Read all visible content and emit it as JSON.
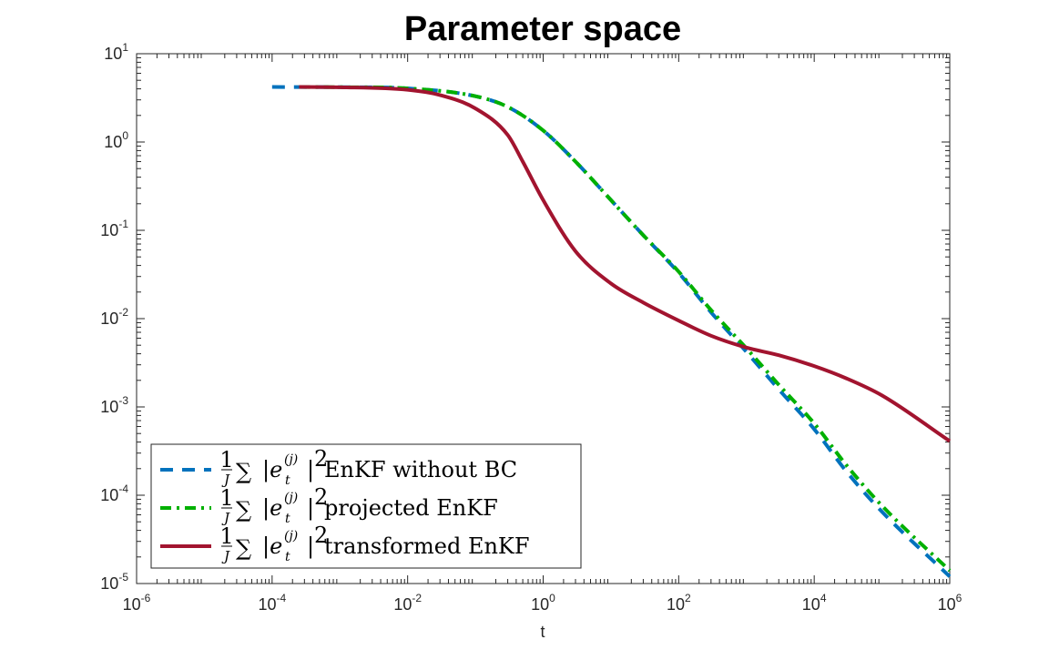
{
  "chart_data": {
    "type": "line",
    "title": "Parameter space",
    "xlabel": "t",
    "ylabel": "",
    "xscale": "log",
    "yscale": "log",
    "xlim": [
      1e-06,
      1000000.0
    ],
    "ylim": [
      1e-05,
      10
    ],
    "x_ticks": [
      {
        "base": "10",
        "exp": "-6",
        "value": 1e-06
      },
      {
        "base": "10",
        "exp": "-4",
        "value": 0.0001
      },
      {
        "base": "10",
        "exp": "-2",
        "value": 0.01
      },
      {
        "base": "10",
        "exp": "0",
        "value": 1
      },
      {
        "base": "10",
        "exp": "2",
        "value": 100
      },
      {
        "base": "10",
        "exp": "4",
        "value": 10000
      },
      {
        "base": "10",
        "exp": "6",
        "value": 1000000
      }
    ],
    "y_ticks": [
      {
        "base": "10",
        "exp": "-5",
        "value": 1e-05
      },
      {
        "base": "10",
        "exp": "-4",
        "value": 0.0001
      },
      {
        "base": "10",
        "exp": "-3",
        "value": 0.001
      },
      {
        "base": "10",
        "exp": "-2",
        "value": 0.01
      },
      {
        "base": "10",
        "exp": "-1",
        "value": 0.1
      },
      {
        "base": "10",
        "exp": "0",
        "value": 1
      },
      {
        "base": "10",
        "exp": "1",
        "value": 10
      }
    ],
    "legend_position": "bottom-left",
    "legend_formula": {
      "frac_num": "1",
      "frac_den": "J",
      "sum": "∑",
      "body": "|e",
      "sub": "t",
      "sup": "(j)",
      "tail": "|",
      "power": "2"
    },
    "series": [
      {
        "name": "EnKF without BC",
        "color": "#0072bd",
        "style": "dashed",
        "x": [
          0.0001,
          0.001,
          0.01,
          0.1,
          0.3,
          1,
          3,
          10,
          30,
          100,
          300,
          1000,
          3000,
          10000,
          30000,
          100000,
          1000000
        ],
        "y": [
          4.2,
          4.18,
          4.05,
          3.3,
          2.5,
          1.35,
          0.6,
          0.22,
          0.088,
          0.033,
          0.0118,
          0.0042,
          0.00158,
          0.00056,
          0.000185,
          6.5e-05,
          1.2e-05
        ]
      },
      {
        "name": "projected EnKF",
        "color": "#00b000",
        "style": "dashdot",
        "x": [
          0.00025,
          0.001,
          0.01,
          0.1,
          0.3,
          1,
          3,
          10,
          30,
          100,
          300,
          1000,
          3000,
          10000,
          30000,
          100000,
          1000000
        ],
        "y": [
          4.2,
          4.18,
          4.05,
          3.3,
          2.5,
          1.35,
          0.6,
          0.22,
          0.088,
          0.034,
          0.0125,
          0.0046,
          0.00178,
          0.00065,
          0.000218,
          7.6e-05,
          1.4e-05
        ]
      },
      {
        "name": "transformed EnKF",
        "color": "#a2142f",
        "style": "solid",
        "x": [
          0.00025,
          0.001,
          0.01,
          0.03,
          0.1,
          0.3,
          0.5,
          1,
          3,
          10,
          30,
          100,
          300,
          1000,
          3000,
          10000,
          30000,
          100000,
          1000000
        ],
        "y": [
          4.2,
          4.17,
          3.9,
          3.4,
          2.4,
          1.2,
          0.6,
          0.22,
          0.058,
          0.025,
          0.0152,
          0.0095,
          0.0064,
          0.0047,
          0.00385,
          0.0029,
          0.0021,
          0.00135,
          0.00041
        ]
      }
    ]
  }
}
